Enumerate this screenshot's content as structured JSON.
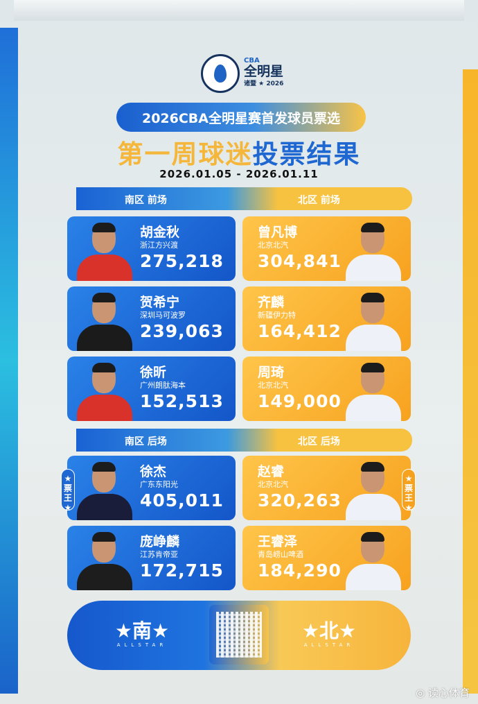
{
  "logo": {
    "league": "CBA",
    "title": "全明星",
    "city": "诸暨",
    "year": "2026"
  },
  "header": {
    "banner": "2026CBA全明星赛首发球员票选",
    "title_part1": "第一周球迷",
    "title_part2": "投票结果",
    "date_range": "2026.01.05 - 2026.01.11"
  },
  "sections": [
    {
      "south": "南区  前场",
      "north": "北区  前场"
    },
    {
      "south": "南区  后场",
      "north": "北区  后场"
    }
  ],
  "south_frontcourt": [
    {
      "name": "胡金秋",
      "team": "浙江方兴渡",
      "votes": "275,218"
    },
    {
      "name": "贺希宁",
      "team": "深圳马可波罗",
      "votes": "239,063"
    },
    {
      "name": "徐昕",
      "team": "广州朗肽海本",
      "votes": "152,513"
    }
  ],
  "north_frontcourt": [
    {
      "name": "曾凡博",
      "team": "北京北汽",
      "votes": "304,841"
    },
    {
      "name": "齐麟",
      "team": "新疆伊力特",
      "votes": "164,412"
    },
    {
      "name": "周琦",
      "team": "北京北汽",
      "votes": "149,000"
    }
  ],
  "south_backcourt": [
    {
      "name": "徐杰",
      "team": "广东东阳光",
      "votes": "405,011"
    },
    {
      "name": "庞峥麟",
      "team": "江苏肯帝亚",
      "votes": "172,715"
    }
  ],
  "north_backcourt": [
    {
      "name": "赵睿",
      "team": "北京北汽",
      "votes": "320,263"
    },
    {
      "name": "王睿泽",
      "team": "青岛崂山啤酒",
      "votes": "184,290"
    }
  ],
  "badge": "票王",
  "footer": {
    "south": "南",
    "north": "北",
    "allstar": "ALLSTAR"
  },
  "watermark": "读心体育",
  "colors": {
    "south": "#1f68d2",
    "north": "#f7b037"
  }
}
